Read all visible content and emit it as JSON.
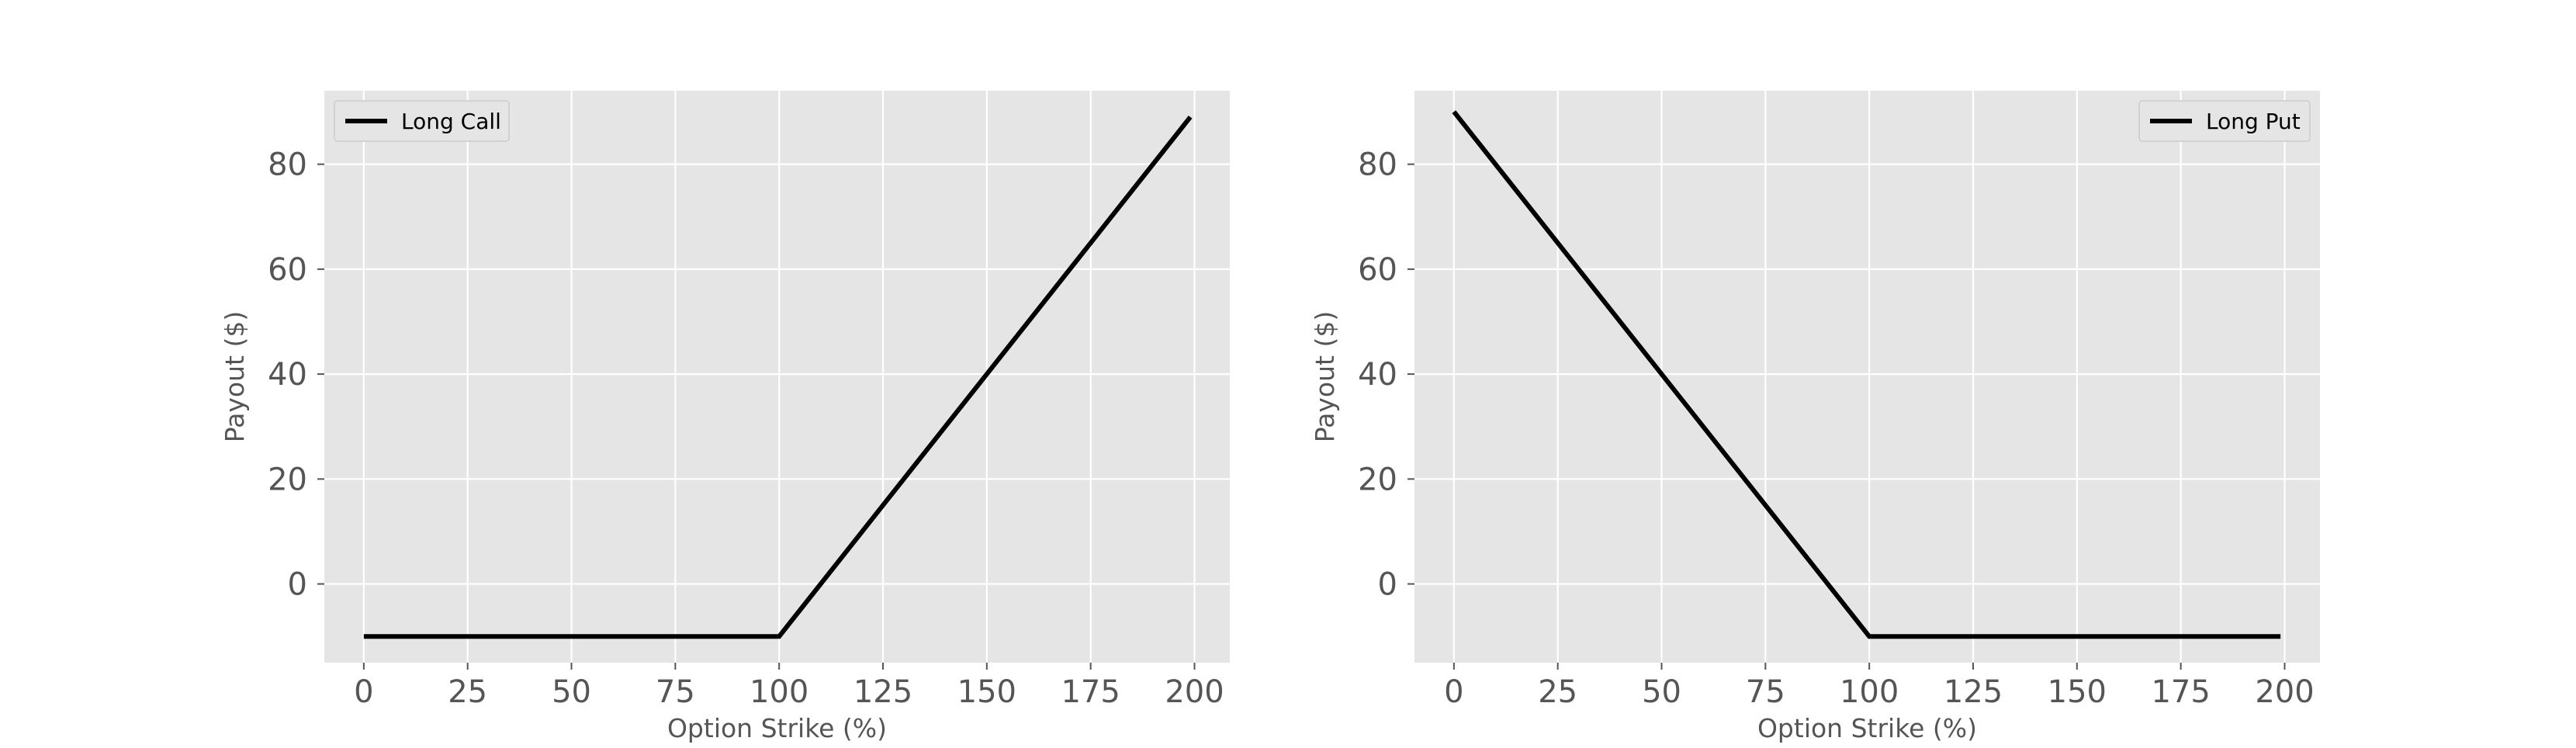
{
  "chart_data": [
    {
      "type": "line",
      "title": "",
      "xlabel": "Option Strike (%)",
      "ylabel": "Payout ($)",
      "xlim": [
        -9.5,
        208.5
      ],
      "ylim": [
        -15,
        94
      ],
      "xticks": [
        0,
        25,
        50,
        75,
        100,
        125,
        150,
        175,
        200
      ],
      "yticks": [
        0,
        20,
        40,
        60,
        80
      ],
      "grid": true,
      "legend_position": "top-left",
      "series": [
        {
          "name": "Long Call",
          "color": "#000000",
          "x": [
            0,
            100,
            199
          ],
          "y": [
            -10,
            -10,
            89
          ]
        }
      ]
    },
    {
      "type": "line",
      "title": "",
      "xlabel": "Option Strike (%)",
      "ylabel": "Payout ($)",
      "xlim": [
        -9.5,
        208.5
      ],
      "ylim": [
        -15,
        94
      ],
      "xticks": [
        0,
        25,
        50,
        75,
        100,
        125,
        150,
        175,
        200
      ],
      "yticks": [
        0,
        20,
        40,
        60,
        80
      ],
      "grid": true,
      "legend_position": "top-right",
      "series": [
        {
          "name": "Long Put",
          "color": "#000000",
          "x": [
            0,
            100,
            199
          ],
          "y": [
            90,
            -10,
            -10
          ]
        }
      ]
    }
  ],
  "style": {
    "plot_background": "#e5e5e5",
    "grid_color": "#ffffff",
    "tick_color": "#555555",
    "legend_background": "#e5e5e5",
    "legend_border": "#cccccc"
  }
}
